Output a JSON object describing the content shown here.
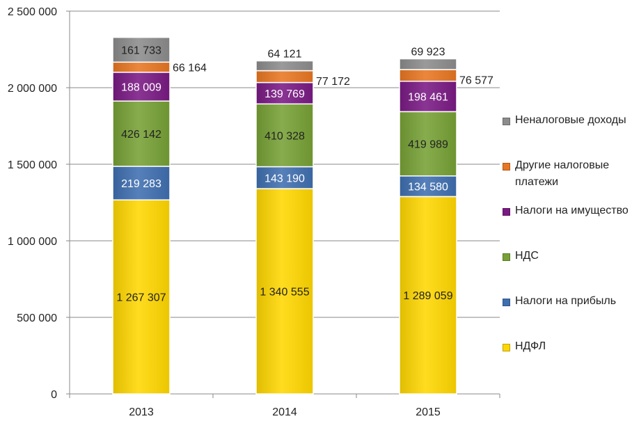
{
  "chart_data": {
    "type": "bar",
    "stacked": true,
    "categories": [
      "2013",
      "2014",
      "2015"
    ],
    "ylim": [
      0,
      2500000
    ],
    "yticks": [
      "0",
      "500 000",
      "1 000 000",
      "1 500 000",
      "2 000 000",
      "2 500 000"
    ],
    "ytick_values": [
      0,
      500000,
      1000000,
      1500000,
      2000000,
      2500000
    ],
    "grid": true,
    "legend_position": "right",
    "series": [
      {
        "name": "НДФЛ",
        "color": "#FFD700",
        "values": [
          1267307,
          1340555,
          1289059
        ],
        "labels": [
          "1 267 307",
          "1 340 555",
          "1 289 059"
        ]
      },
      {
        "name": "Налоги на прибыль",
        "color": "#3F6FB0",
        "values": [
          219283,
          143190,
          134580
        ],
        "labels": [
          "219 283",
          "143 190",
          "134 580"
        ]
      },
      {
        "name": "НДС",
        "color": "#77A135",
        "values": [
          426142,
          410328,
          419989
        ],
        "labels": [
          "426 142",
          "410 328",
          "419 989"
        ]
      },
      {
        "name": "Налоги на имущество",
        "color": "#7A1A84",
        "values": [
          188009,
          139769,
          198461
        ],
        "labels": [
          "188 009",
          "139 769",
          "198 461"
        ]
      },
      {
        "name": "Другие налоговые платежи",
        "color": "#E87722",
        "values": [
          66164,
          77172,
          76577
        ],
        "labels": [
          "66 164",
          "77 172",
          "76 577"
        ]
      },
      {
        "name": "Неналоговые доходы",
        "color": "#8C8C8C",
        "values": [
          161733,
          64121,
          69923
        ],
        "labels": [
          "161 733",
          "64 121",
          "69 923"
        ]
      }
    ]
  }
}
